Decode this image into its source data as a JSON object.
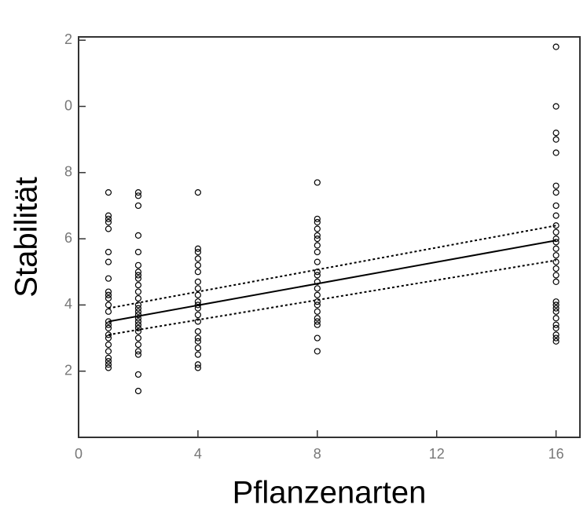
{
  "chart_data": {
    "type": "scatter",
    "x_label": "Pflanzenarten",
    "y_label": "Stabilität",
    "xlim": [
      0,
      16.8
    ],
    "ylim": [
      0,
      12.1
    ],
    "xticks": [
      0,
      4,
      8,
      12,
      16
    ],
    "yticks": [
      2,
      4,
      6,
      8,
      {
        "value": 10,
        "label": "0"
      },
      {
        "value": 12,
        "label": "2"
      }
    ],
    "series": [
      {
        "x": 1,
        "values": [
          7.4,
          6.7,
          6.6,
          6.5,
          6.3,
          5.6,
          5.3,
          4.8,
          4.4,
          4.3,
          4.2,
          4.0,
          3.8,
          3.5,
          3.4,
          3.3,
          3.1,
          3.0,
          2.8,
          2.6,
          2.4,
          2.3,
          2.2,
          2.1
        ]
      },
      {
        "x": 2,
        "values": [
          7.4,
          7.3,
          7.0,
          6.1,
          5.6,
          5.2,
          5.0,
          4.9,
          4.8,
          4.6,
          4.4,
          4.2,
          4.0,
          3.9,
          3.8,
          3.7,
          3.6,
          3.5,
          3.4,
          3.3,
          3.2,
          3.0,
          2.8,
          2.6,
          2.5,
          1.9,
          1.4
        ]
      },
      {
        "x": 4,
        "values": [
          7.4,
          5.7,
          5.6,
          5.4,
          5.2,
          5.0,
          4.7,
          4.5,
          4.3,
          4.1,
          4.0,
          3.9,
          3.7,
          3.5,
          3.2,
          3.0,
          2.9,
          2.7,
          2.5,
          2.2,
          2.1
        ]
      },
      {
        "x": 8,
        "values": [
          7.7,
          6.6,
          6.5,
          6.3,
          6.1,
          6.0,
          5.8,
          5.6,
          5.3,
          5.0,
          4.9,
          4.7,
          4.5,
          4.3,
          4.1,
          4.0,
          3.8,
          3.6,
          3.5,
          3.4,
          3.0,
          2.6
        ]
      },
      {
        "x": 16,
        "values": [
          11.8,
          10.0,
          9.2,
          9.0,
          8.6,
          7.6,
          7.4,
          7.0,
          6.7,
          6.4,
          6.2,
          6.0,
          5.9,
          5.7,
          5.5,
          5.3,
          5.1,
          4.9,
          4.7,
          4.1,
          4.0,
          3.9,
          3.8,
          3.6,
          3.4,
          3.3,
          3.1,
          3.0,
          2.9
        ]
      }
    ],
    "fit": {
      "x": [
        1,
        16
      ],
      "values": [
        3.5,
        5.95
      ]
    },
    "upper": {
      "x": [
        1,
        16
      ],
      "values": [
        3.9,
        6.4
      ]
    },
    "lower": {
      "x": [
        1,
        16
      ],
      "values": [
        3.1,
        5.35
      ]
    },
    "color": "#000000"
  }
}
